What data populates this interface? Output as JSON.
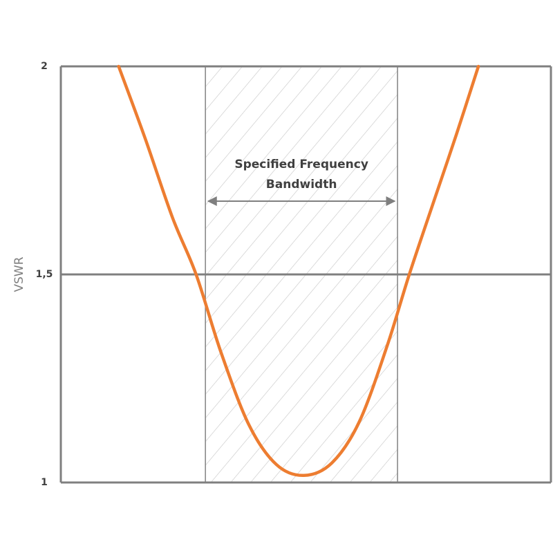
{
  "chart_data": {
    "type": "line",
    "y_label": "VSWR",
    "annotation": [
      "Specified Frequency",
      "Bandwidth"
    ],
    "band": [
      29.5,
      68.7
    ],
    "xlim": [
      0,
      100
    ],
    "ylim": [
      1,
      2
    ],
    "yticks": [
      1,
      {
        "value": 1.5,
        "label": "1,5"
      },
      2
    ],
    "grid": true,
    "series": [
      {
        "color": "#ed7d31",
        "x": [
          11.8,
          17.2,
          22.8,
          27.6,
          32.7,
          38.4,
          44.0,
          49.6,
          55.3,
          60.9,
          66.6,
          71.1,
          76.4,
          80.7,
          85.2
        ],
        "values": [
          2,
          1.827,
          1.636,
          1.5,
          1.312,
          1.138,
          1.043,
          1.017,
          1.047,
          1.146,
          1.329,
          1.5,
          1.686,
          1.836,
          2
        ]
      }
    ]
  }
}
